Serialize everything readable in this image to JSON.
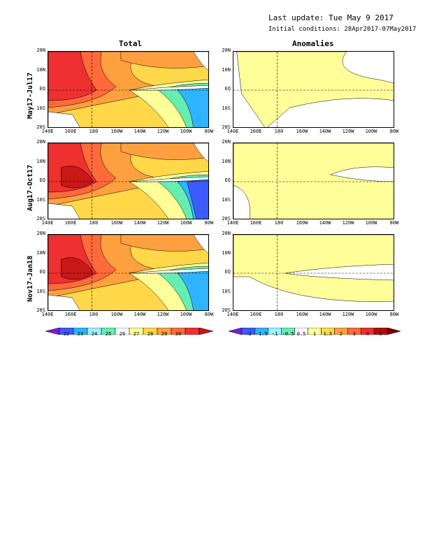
{
  "header": {
    "last_update": "Last update: Tue May 9 2017",
    "initial_conditions": "Initial conditions: 28Apr2017-07May2017"
  },
  "columns": [
    "Total",
    "Anomalies"
  ],
  "rows": [
    "May17-Jul17",
    "Aug17-Oct17",
    "Nov17-Jan18"
  ],
  "y_ticks": [
    "20N",
    "10N",
    "EQ",
    "10S",
    "20S"
  ],
  "x_ticks": [
    "140E",
    "160E",
    "180",
    "160W",
    "140W",
    "120W",
    "100W",
    "80W"
  ],
  "total_colorbar": {
    "labels": [
      "22",
      "23",
      "24",
      "25",
      "26",
      "27",
      "28",
      "29",
      "30"
    ],
    "colors": [
      "#7a1cd8",
      "#3b5cff",
      "#2fb4ff",
      "#9cf2ff",
      "#66eeb0",
      "#ffffff",
      "#ffff99",
      "#ffd84a",
      "#ffa040",
      "#ff6a3a",
      "#ee3030",
      "#c81818"
    ]
  },
  "anomaly_colorbar": {
    "labels": [
      "-2",
      "-1.5",
      "-1",
      "-0.5",
      "0.5",
      "1",
      "1.5",
      "2",
      "3",
      "4",
      "5"
    ],
    "colors": [
      "#7a1cd8",
      "#3b5cff",
      "#2fb4ff",
      "#9cf2ff",
      "#66eeb0",
      "#ffffff",
      "#ffff99",
      "#ffd84a",
      "#ffa040",
      "#ff6a3a",
      "#ee3030",
      "#b40c0c",
      "#780000"
    ]
  },
  "chart_data": {
    "type": "heatmap",
    "title": "Total / Anomalies",
    "x_range": [
      "140E",
      "80W"
    ],
    "y_range": [
      "20S",
      "20N"
    ],
    "panels": [
      {
        "column": "Total",
        "row": "May17-Jul17"
      },
      {
        "column": "Total",
        "row": "Aug17-Oct17"
      },
      {
        "column": "Total",
        "row": "Nov17-Jan18"
      },
      {
        "column": "Anomalies",
        "row": "May17-Jul17"
      },
      {
        "column": "Anomalies",
        "row": "Aug17-Oct17"
      },
      {
        "column": "Anomalies",
        "row": "Nov17-Jan18"
      }
    ]
  }
}
